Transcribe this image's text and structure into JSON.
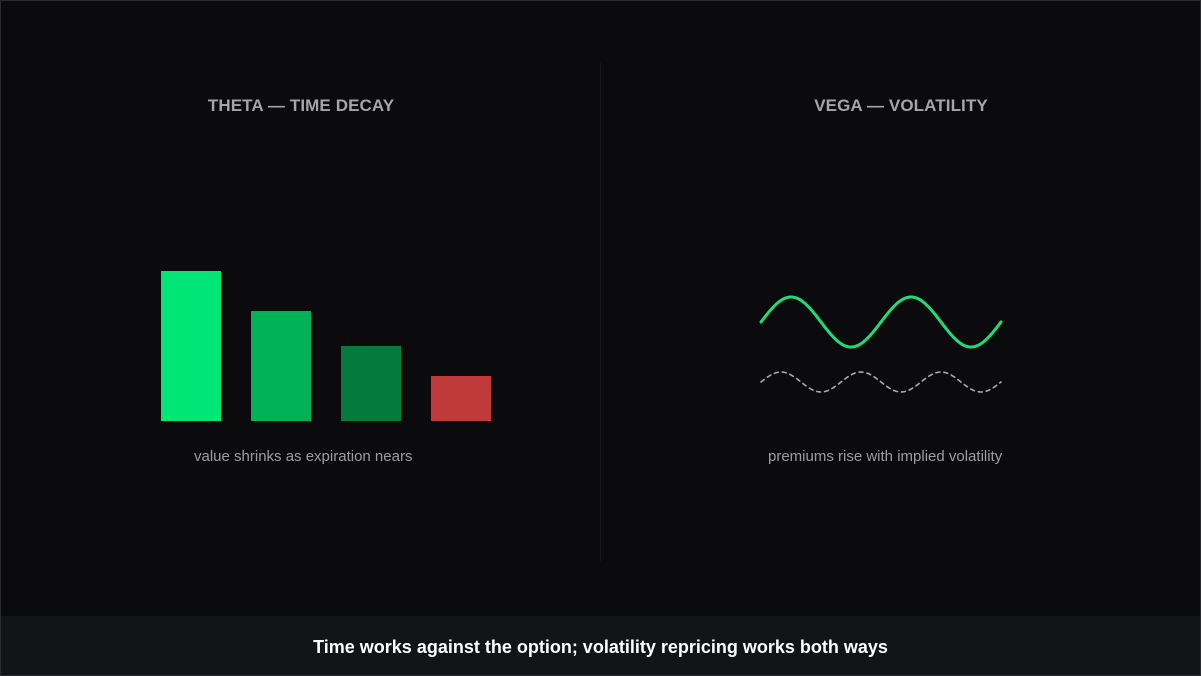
{
  "theta_panel": {
    "title": "THETA — TIME DECAY",
    "caption": "value shrinks as expiration nears",
    "bars": [
      {
        "value": 150,
        "color": "#00e676"
      },
      {
        "value": 110,
        "color": "#00b257"
      },
      {
        "value": 75,
        "color": "#047a3c"
      },
      {
        "value": 45,
        "color": "#c0393b"
      }
    ]
  },
  "vega_panel": {
    "title": "VEGA — VOLATILITY",
    "caption": "premiums rise with implied volatility",
    "waves": [
      {
        "style": "solid",
        "color": "#1fdc7a",
        "amplitude": 25,
        "cycles": 2
      },
      {
        "style": "dashed",
        "color": "#a9aaae",
        "amplitude": 10,
        "cycles": 3
      }
    ]
  },
  "footer": {
    "text": "Time works against the option; volatility repricing works both ways"
  }
}
